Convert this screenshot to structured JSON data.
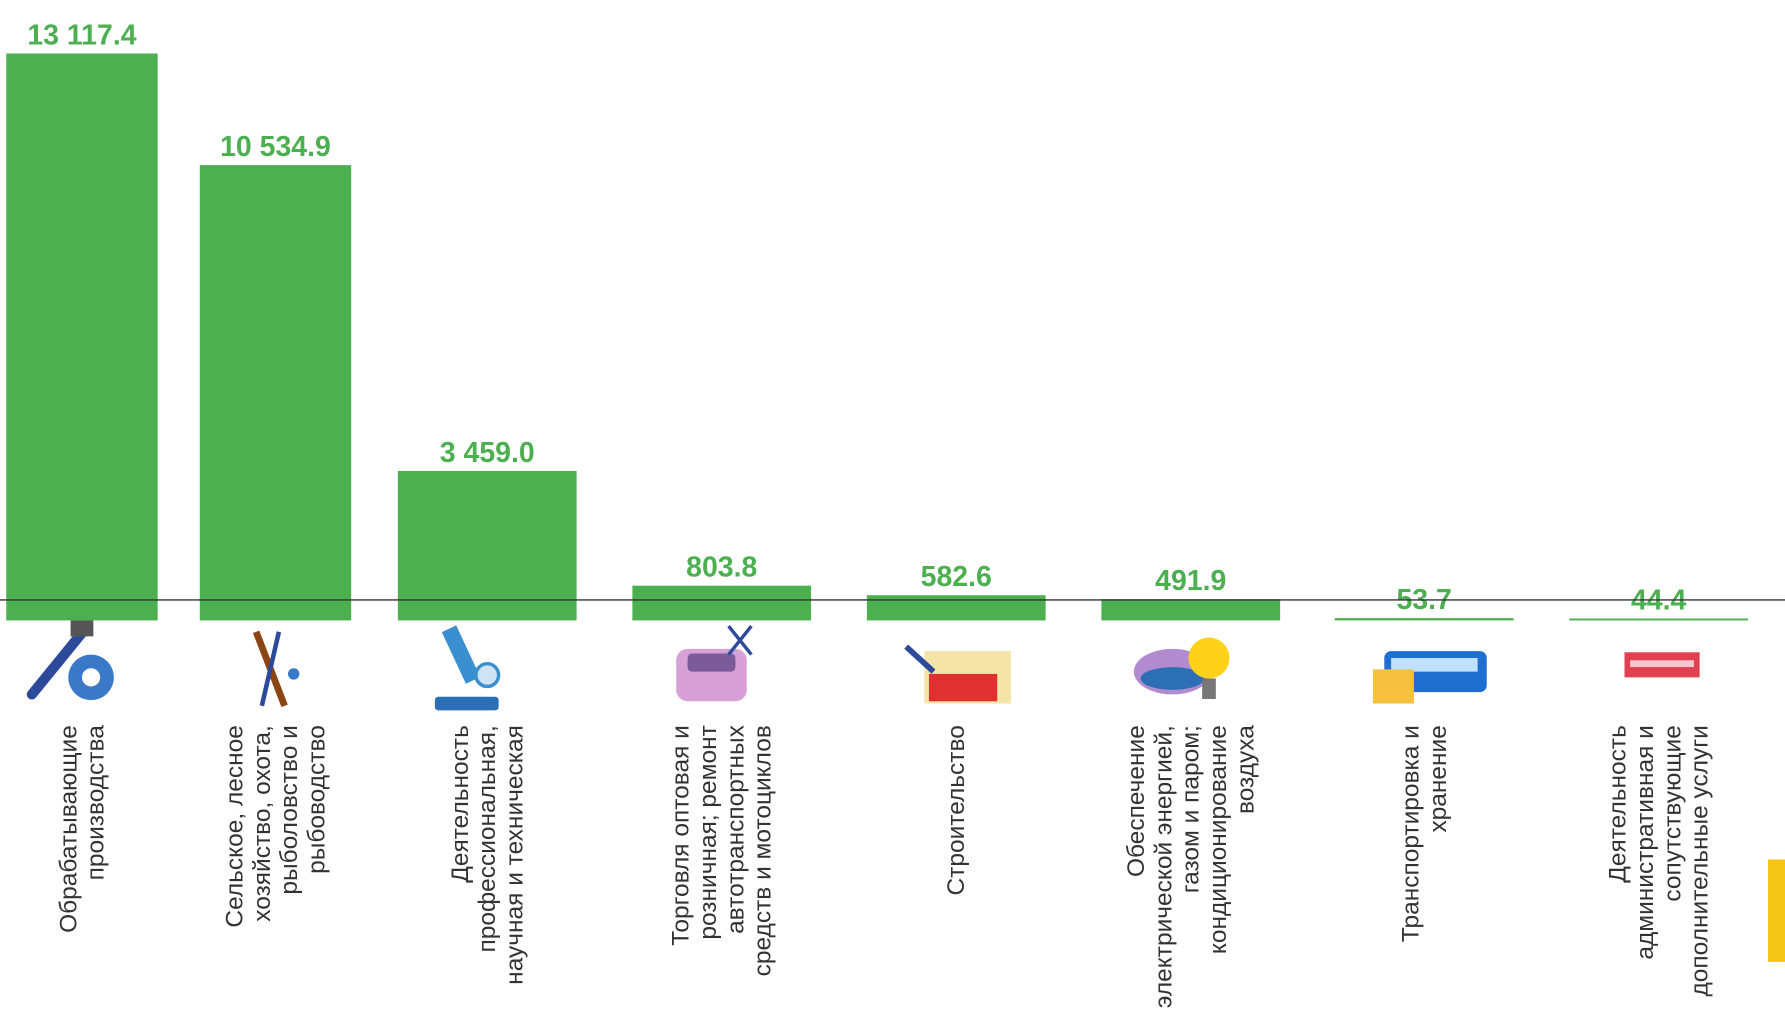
{
  "chart_data": {
    "type": "bar",
    "categories": [
      "Обрабатывающие производства",
      "Сельское, лесное хозяйство, охота, рыболовство и рыбоводство",
      "Деятельность профессиональная, научная и техническая",
      "Торговля оптовая и розничная; ремонт автотранспортных средств и мотоциклов",
      "Строительство",
      "Обеспечение электрической энергией, газом и паром; кондиционирование воздуха",
      "Транспортировка и хранение",
      "Деятельность административная и сопутствующие дополнительные услуги"
    ],
    "values": [
      13117.4,
      10534.9,
      3459.0,
      803.8,
      582.6,
      491.9,
      53.7,
      44.4
    ],
    "value_labels": [
      "13 117.4",
      "10 534.9",
      "3 459.0",
      "803.8",
      "582.6",
      "491.9",
      "53.7",
      "44.4"
    ],
    "color": "#4caf50"
  }
}
